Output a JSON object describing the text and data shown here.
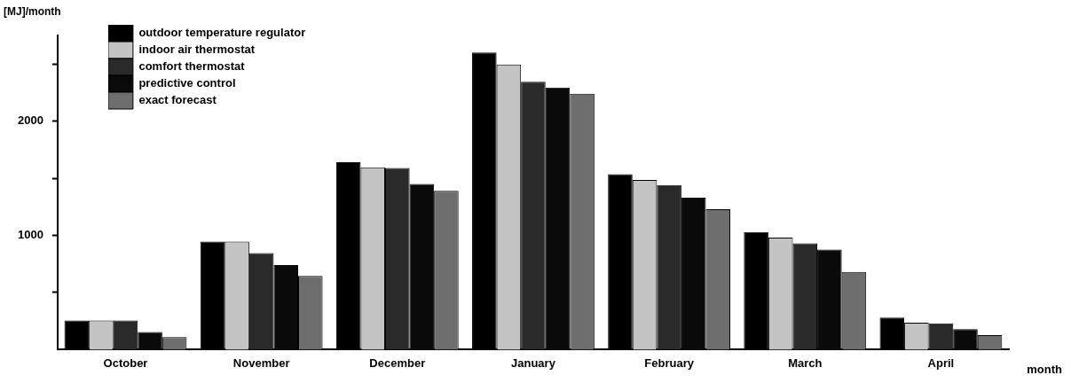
{
  "chart_data": {
    "type": "bar",
    "xlabel": "month",
    "ylabel": "[MJ]/month",
    "categories": [
      "October",
      "November",
      "December",
      "January",
      "February",
      "March",
      "April"
    ],
    "series": [
      {
        "name": "outdoor temperature regulator",
        "color": "#000000",
        "values": [
          255,
          945,
          1640,
          2600,
          1535,
          1030,
          280
        ]
      },
      {
        "name": "indoor air thermostat",
        "color": "#c4c4c4",
        "values": [
          255,
          945,
          1595,
          2495,
          1485,
          980,
          235
        ]
      },
      {
        "name": "comfort thermostat",
        "color": "#2a2a2a",
        "values": [
          255,
          845,
          1590,
          2345,
          1440,
          930,
          230
        ]
      },
      {
        "name": "predictive control",
        "color": "#0a0a0a",
        "values": [
          155,
          740,
          1450,
          2295,
          1330,
          877,
          180
        ]
      },
      {
        "name": "exact forecast",
        "color": "#6e6e6e",
        "values": [
          110,
          645,
          1390,
          2240,
          1230,
          680,
          128
        ]
      }
    ],
    "ylim": [
      0,
      2750
    ],
    "yticks": [
      {
        "value": 500,
        "label": null
      },
      1000,
      {
        "value": 1500,
        "label": null
      },
      2000,
      {
        "value": 2500,
        "label": null
      }
    ],
    "grid": false,
    "legend": "top left"
  }
}
